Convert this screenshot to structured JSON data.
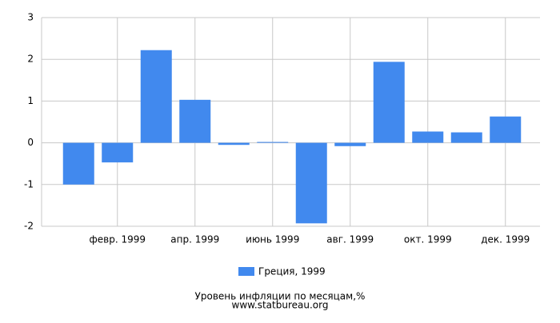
{
  "chart_data": {
    "type": "bar",
    "title": "Уровень инфляции по месяцам,%",
    "subtitle": "www.statbureau.org",
    "categories": [
      null,
      "февр. 1999",
      null,
      "апр. 1999",
      null,
      "июнь 1999",
      null,
      "авг. 1999",
      null,
      "окт. 1999",
      null,
      "дек. 1999"
    ],
    "series": [
      {
        "name": "Греция, 1999",
        "color": "#4189ee",
        "values": [
          -1.0,
          -0.47,
          2.22,
          1.03,
          -0.05,
          0.02,
          -1.93,
          -0.08,
          1.94,
          0.27,
          0.25,
          0.63
        ]
      }
    ],
    "ylim": [
      -2,
      3
    ],
    "yticks": [
      -2,
      -1,
      0,
      1,
      2,
      3
    ],
    "grid": true,
    "legend": "bottom"
  }
}
